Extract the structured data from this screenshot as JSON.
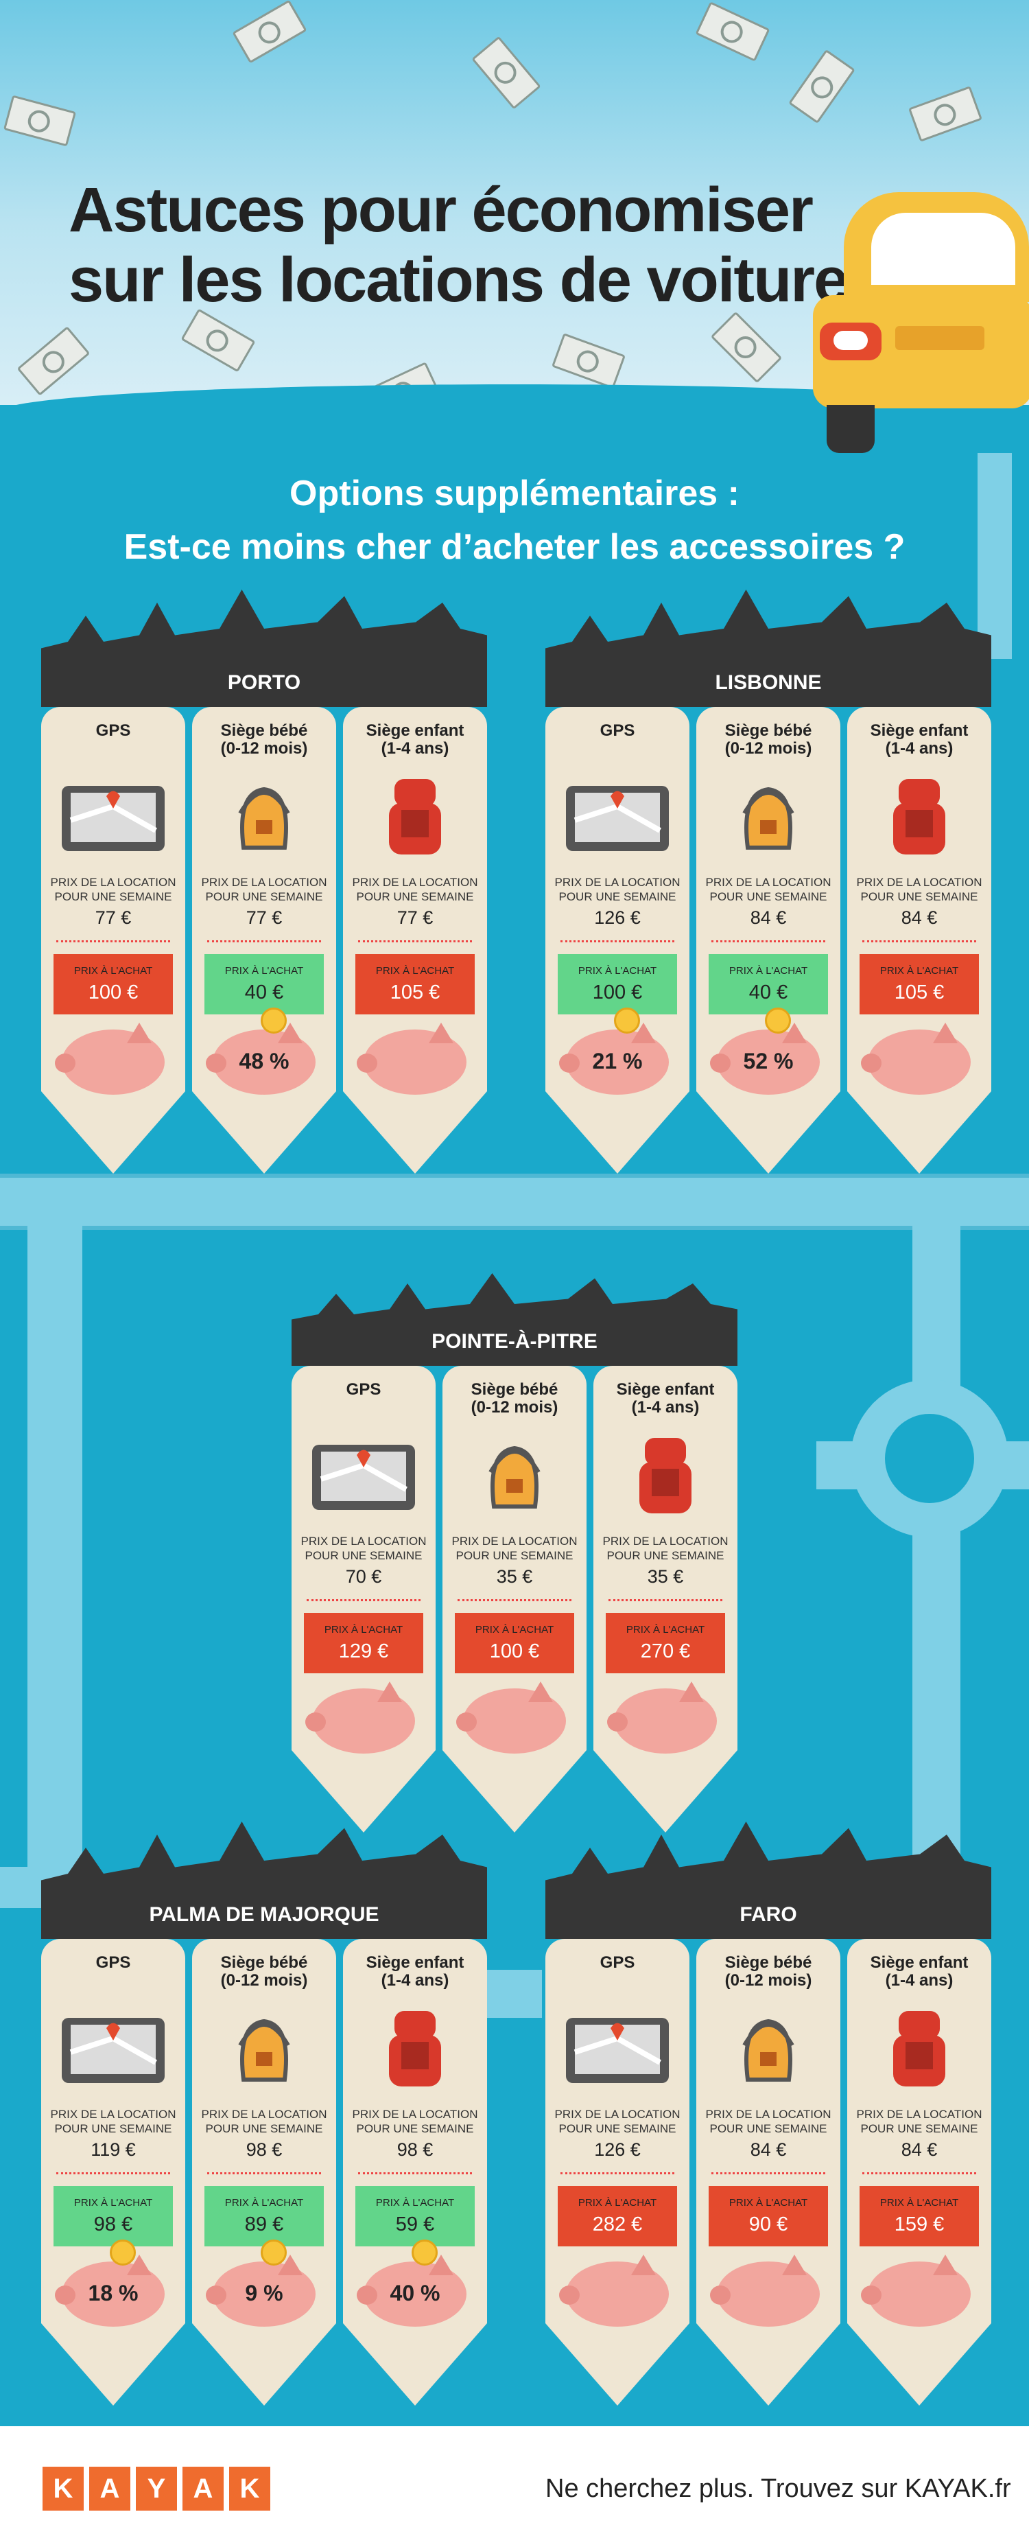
{
  "title_lines": [
    "Astuces pour économiser",
    "sur les locations de voitures"
  ],
  "subtitle_lines": [
    "Options supplémentaires :",
    "Est-ce moins cher d’acheter les accessoires ?"
  ],
  "columns": [
    {
      "label": "GPS",
      "icon": "gps-icon"
    },
    {
      "label": "Siège bébé\n(0-12 mois)",
      "icon": "baby-seat-icon"
    },
    {
      "label": "Siège enfant\n(1-4 ans)",
      "icon": "child-seat-icon"
    }
  ],
  "rental_label": "PRIX DE LA LOCATION\nPOUR UNE SEMAINE",
  "buy_label": "PRIX À L'ACHAT",
  "colors": {
    "cheaper": "#62d58a",
    "dearer": "#e44a2d",
    "background": "#1aa9cb",
    "brand": "#ef6c2e"
  },
  "cities": [
    {
      "name": "PORTO",
      "items": [
        {
          "rental": "77 €",
          "buy": "100 €",
          "cheaper": false,
          "saving": ""
        },
        {
          "rental": "77 €",
          "buy": "40 €",
          "cheaper": true,
          "saving": "48 %"
        },
        {
          "rental": "77 €",
          "buy": "105 €",
          "cheaper": false,
          "saving": ""
        }
      ]
    },
    {
      "name": "LISBONNE",
      "items": [
        {
          "rental": "126 €",
          "buy": "100 €",
          "cheaper": true,
          "saving": "21 %"
        },
        {
          "rental": "84 €",
          "buy": "40 €",
          "cheaper": true,
          "saving": "52 %"
        },
        {
          "rental": "84 €",
          "buy": "105 €",
          "cheaper": false,
          "saving": ""
        }
      ]
    },
    {
      "name": "POINTE-À-PITRE",
      "items": [
        {
          "rental": "70 €",
          "buy": "129 €",
          "cheaper": false,
          "saving": ""
        },
        {
          "rental": "35 €",
          "buy": "100 €",
          "cheaper": false,
          "saving": ""
        },
        {
          "rental": "35 €",
          "buy": "270 €",
          "cheaper": false,
          "saving": ""
        }
      ]
    },
    {
      "name": "PALMA DE MAJORQUE",
      "items": [
        {
          "rental": "119 €",
          "buy": "98 €",
          "cheaper": true,
          "saving": "18 %"
        },
        {
          "rental": "98 €",
          "buy": "89 €",
          "cheaper": true,
          "saving": "9 %"
        },
        {
          "rental": "98 €",
          "buy": "59 €",
          "cheaper": true,
          "saving": "40 %"
        }
      ]
    },
    {
      "name": "FARO",
      "items": [
        {
          "rental": "126 €",
          "buy": "282 €",
          "cheaper": false,
          "saving": ""
        },
        {
          "rental": "84 €",
          "buy": "90 €",
          "cheaper": false,
          "saving": ""
        },
        {
          "rental": "84 €",
          "buy": "159 €",
          "cheaper": false,
          "saving": ""
        }
      ]
    }
  ],
  "footer": {
    "logo_letters": [
      "K",
      "A",
      "Y",
      "A",
      "K"
    ],
    "tagline": "Ne cherchez plus. Trouvez sur KAYAK.fr"
  }
}
